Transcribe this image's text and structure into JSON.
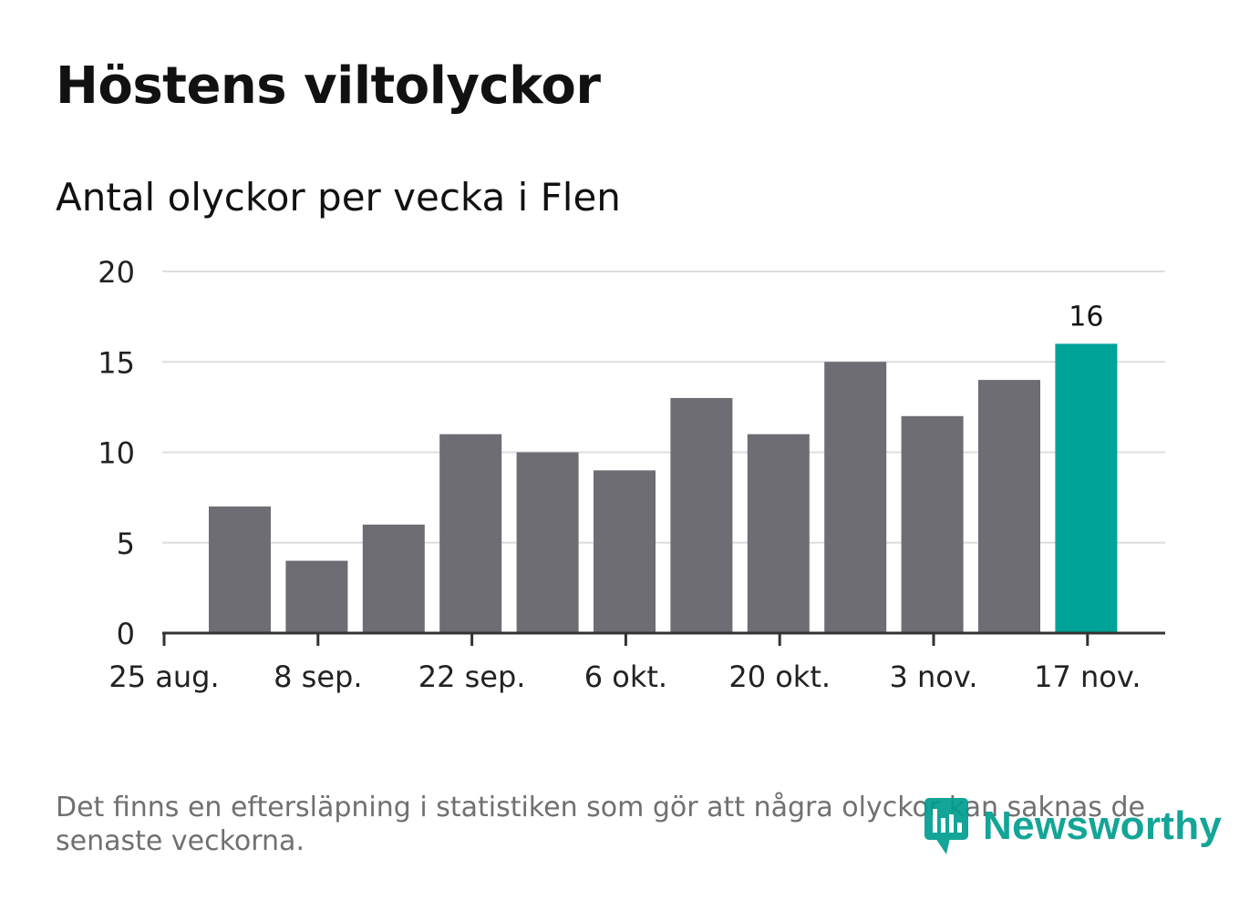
{
  "title": "Höstens viltolyckor",
  "subtitle": "Antal olyckor per vecka i Flen",
  "footnote": "Det finns en eftersläpning i statistiken som gör att några olyckor kan saknas de senaste veckorna.",
  "logo_text": "Newsworthy",
  "colors": {
    "bar": "#6e6d73",
    "highlight": "#00a398",
    "gridline": "#dddddd",
    "axis": "#333333",
    "tick_text": "#222222"
  },
  "chart_data": {
    "type": "bar",
    "title": "Höstens viltolyckor",
    "subtitle": "Antal olyckor per vecka i Flen",
    "xlabel": "",
    "ylabel": "",
    "ylim": [
      0,
      20
    ],
    "yticks": [
      0,
      5,
      10,
      15,
      20
    ],
    "grid": true,
    "x_tick_labels": [
      "25 aug.",
      "8 sep.",
      "22 sep.",
      "6 okt.",
      "20 okt.",
      "3 nov.",
      "17 nov."
    ],
    "values": [
      7,
      4,
      6,
      11,
      10,
      9,
      13,
      11,
      15,
      12,
      14,
      16
    ],
    "highlight_index": 11,
    "data_labels": [
      {
        "index": 11,
        "text": "16"
      }
    ]
  }
}
